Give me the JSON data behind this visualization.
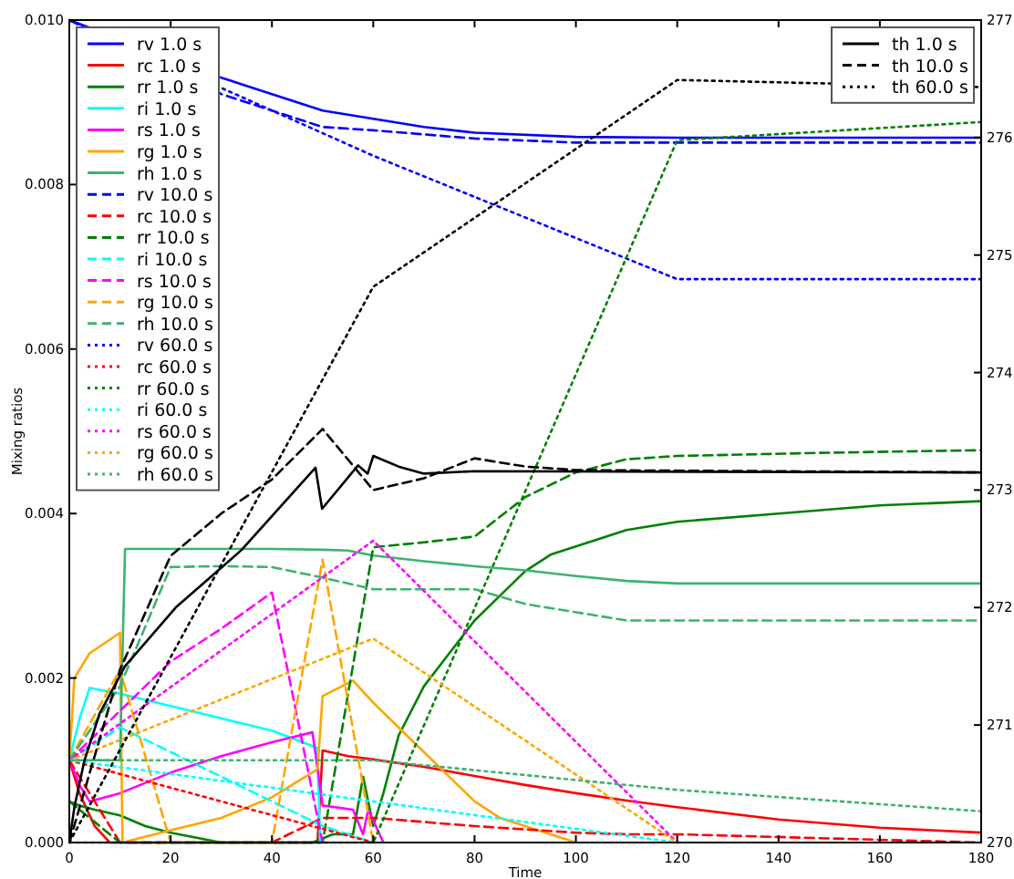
{
  "chart_data": {
    "type": "line",
    "xlabel": "Time",
    "ylabel": "Mixing ratios",
    "xlim": [
      0,
      180
    ],
    "xticks": [
      0,
      20,
      40,
      60,
      80,
      100,
      120,
      140,
      160,
      180
    ],
    "ylim": [
      0,
      0.01
    ],
    "yticks": [
      {
        "value": 0,
        "label": "0.000"
      },
      {
        "value": 0.002,
        "label": "0.002"
      },
      {
        "value": 0.004,
        "label": "0.004"
      },
      {
        "value": 0.006,
        "label": "0.006"
      },
      {
        "value": 0.008,
        "label": "0.008"
      },
      {
        "value": 0.01,
        "label": "0.010"
      }
    ],
    "y2lim": [
      270,
      277
    ],
    "y2ticks": [
      270,
      271,
      272,
      273,
      274,
      275,
      276,
      277
    ],
    "legend": "top left",
    "series": [
      {
        "name": "rv 1.0 s",
        "color": "#0000ff",
        "line_style": "solid",
        "x": [
          0,
          30,
          40,
          50,
          60,
          70,
          80,
          100,
          120,
          180
        ],
        "values": [
          0.01,
          0.0093,
          0.0091,
          0.0089,
          0.0088,
          0.0087,
          0.00863,
          0.00858,
          0.00857,
          0.00857
        ]
      },
      {
        "name": "rc 1.0 s",
        "color": "#ff0000",
        "line_style": "solid",
        "x": [
          0,
          2,
          5,
          8,
          10,
          49,
          50,
          55,
          60,
          70,
          80,
          90,
          100,
          110,
          120,
          140,
          160,
          180
        ],
        "values": [
          0.001,
          0.0006,
          0.0002,
          0,
          0,
          0,
          0.00112,
          0.00105,
          0.00101,
          0.00092,
          0.00081,
          0.0007,
          0.0006,
          0.00051,
          0.00043,
          0.00028,
          0.00018,
          0.00012
        ]
      },
      {
        "name": "rr 1.0 s",
        "color": "#008000",
        "line_style": "solid",
        "x": [
          0,
          2,
          5,
          10,
          15,
          20,
          30,
          40,
          48,
          52,
          56,
          58,
          60,
          62,
          65,
          70,
          75,
          80,
          85,
          90,
          95,
          100,
          110,
          120,
          140,
          160,
          180
        ],
        "values": [
          0.0005,
          0.00045,
          0.0004,
          0.00033,
          0.0002,
          0.00012,
          0,
          0,
          0,
          0.0001,
          0.0001,
          0.0008,
          0.0002,
          0.0006,
          0.0013,
          0.0019,
          0.0023,
          0.0027,
          0.003,
          0.0033,
          0.0035,
          0.0036,
          0.0038,
          0.0039,
          0.004,
          0.0041,
          0.00415
        ]
      },
      {
        "name": "ri 1.0 s",
        "color": "#00ffff",
        "line_style": "solid",
        "x": [
          0,
          2,
          4,
          10,
          20,
          30,
          40,
          49,
          49.5
        ],
        "values": [
          0.001,
          0.0015,
          0.00188,
          0.00181,
          0.00166,
          0.00151,
          0.00136,
          0.00115,
          0
        ]
      },
      {
        "name": "rs 1.0 s",
        "color": "#ff00ff",
        "line_style": "solid",
        "x": [
          0,
          2,
          4,
          10,
          20,
          30,
          40,
          48,
          50,
          56,
          58,
          59,
          62
        ],
        "values": [
          0.001,
          0.0007,
          0.0005,
          0.0006,
          0.00085,
          0.00105,
          0.00122,
          0.00134,
          0.00045,
          0.0004,
          0.0001,
          0.0004,
          0
        ]
      },
      {
        "name": "rg 1.0 s",
        "color": "#ffa500",
        "line_style": "solid",
        "x": [
          0,
          1,
          4,
          10,
          10.5,
          20,
          30,
          40,
          49,
          50,
          56,
          60,
          65,
          70,
          75,
          80,
          85,
          90,
          100
        ],
        "values": [
          0.001,
          0.002,
          0.0023,
          0.00255,
          0,
          0.00015,
          0.0003,
          0.00055,
          0.00089,
          0.00178,
          0.00197,
          0.0017,
          0.0014,
          0.0011,
          0.0008,
          0.0005,
          0.0003,
          0.0002,
          0
        ]
      },
      {
        "name": "rh 1.0 s",
        "color": "#3cb371",
        "line_style": "solid",
        "x": [
          0,
          10,
          11,
          20,
          30,
          40,
          50,
          55,
          60,
          70,
          80,
          90,
          100,
          110,
          120,
          150,
          180
        ],
        "values": [
          0.001,
          0.001,
          0.00357,
          0.00357,
          0.00357,
          0.00357,
          0.00356,
          0.00355,
          0.00349,
          0.00342,
          0.00336,
          0.00331,
          0.00324,
          0.00318,
          0.00315,
          0.00315,
          0.00315
        ]
      },
      {
        "name": "rv 10.0 s",
        "color": "#0000ff",
        "line_style": "dashed",
        "x": [
          0,
          30,
          40,
          50,
          60,
          80,
          100,
          180
        ],
        "values": [
          0.01,
          0.0091,
          0.0089,
          0.0087,
          0.00866,
          0.00856,
          0.00851,
          0.00851
        ]
      },
      {
        "name": "rc 10.0 s",
        "color": "#ff0000",
        "line_style": "dashed",
        "x": [
          0,
          10,
          20,
          30,
          40,
          50,
          60,
          70,
          80,
          90,
          100,
          110,
          120,
          180
        ],
        "values": [
          0.001,
          0,
          0,
          0,
          0,
          0.0003,
          0.0003,
          0.00025,
          0.0002,
          0.00016,
          0.00012,
          0.0001,
          0.0001,
          0
        ]
      },
      {
        "name": "rr 10.0 s",
        "color": "#008000",
        "line_style": "dashed",
        "x": [
          0,
          10,
          20,
          40,
          50,
          60,
          70,
          80,
          90,
          100,
          110,
          120,
          150,
          180
        ],
        "values": [
          0.0005,
          0,
          0,
          0,
          0,
          0.00359,
          0.00365,
          0.00372,
          0.0042,
          0.0045,
          0.00466,
          0.0047,
          0.00474,
          0.00477
        ]
      },
      {
        "name": "ri 10.0 s",
        "color": "#00ffff",
        "line_style": "dashed",
        "x": [
          0,
          10,
          20,
          30,
          40,
          50,
          60
        ],
        "values": [
          0.001,
          0.0014,
          0.0011,
          0.0008,
          0.0005,
          0.0002,
          0
        ]
      },
      {
        "name": "rs 10.0 s",
        "color": "#ff00ff",
        "line_style": "dashed",
        "x": [
          0,
          10,
          20,
          30,
          40,
          50
        ],
        "values": [
          0.001,
          0.0016,
          0.0022,
          0.0026,
          0.00304,
          0
        ]
      },
      {
        "name": "rg 10.0 s",
        "color": "#ffa500",
        "line_style": "dashed",
        "x": [
          0,
          10,
          20,
          30,
          40,
          50,
          60
        ],
        "values": [
          0.001,
          0.0021,
          0,
          0,
          0,
          0.00344,
          0
        ]
      },
      {
        "name": "rh 10.0 s",
        "color": "#3cb371",
        "line_style": "dashed",
        "x": [
          0,
          10,
          20,
          30,
          40,
          50,
          60,
          70,
          80,
          90,
          100,
          110,
          180
        ],
        "values": [
          0.001,
          0.0019,
          0.00335,
          0.00336,
          0.00335,
          0.00322,
          0.00308,
          0.00308,
          0.00308,
          0.0029,
          0.0028,
          0.0027,
          0.0027
        ]
      },
      {
        "name": "rv 60.0 s",
        "color": "#0000ff",
        "line_style": "dotted",
        "x": [
          0,
          60,
          120,
          180
        ],
        "values": [
          0.01,
          0.00835,
          0.00685,
          0.00685
        ]
      },
      {
        "name": "rc 60.0 s",
        "color": "#ff0000",
        "line_style": "dotted",
        "x": [
          0,
          60
        ],
        "values": [
          0.001,
          0
        ]
      },
      {
        "name": "rr 60.0 s",
        "color": "#008000",
        "line_style": "dotted",
        "x": [
          0,
          60,
          120,
          180
        ],
        "values": [
          0,
          0,
          0.00854,
          0.00876
        ]
      },
      {
        "name": "ri 60.0 s",
        "color": "#00ffff",
        "line_style": "dotted",
        "x": [
          0,
          60,
          120
        ],
        "values": [
          0.001,
          0.0005,
          0
        ]
      },
      {
        "name": "rs 60.0 s",
        "color": "#ff00ff",
        "line_style": "dotted",
        "x": [
          0,
          60,
          120
        ],
        "values": [
          0.001,
          0.00367,
          0
        ]
      },
      {
        "name": "rg 60.0 s",
        "color": "#ffa500",
        "line_style": "dotted",
        "x": [
          0,
          60,
          120
        ],
        "values": [
          0.001,
          0.00248,
          0
        ]
      },
      {
        "name": "rh 60.0 s",
        "color": "#3cb371",
        "line_style": "dotted",
        "x": [
          0,
          60,
          120,
          180
        ],
        "values": [
          0.001,
          0.001,
          0.00064,
          0.00038
        ]
      },
      {
        "name": "th 1.0 s",
        "color": "#000000",
        "line_style": "solid",
        "axis": "y2",
        "x": [
          0,
          1,
          3,
          6,
          11,
          21,
          34,
          48.6,
          49.9,
          57,
          58.9,
          60,
          65,
          70,
          80,
          180
        ],
        "values": [
          270,
          270.3,
          270.7,
          271.1,
          271.5,
          272,
          272.49,
          273.19,
          272.84,
          273.21,
          273.14,
          273.29,
          273.2,
          273.14,
          273.16,
          273.15
        ]
      },
      {
        "name": "th 10.0 s",
        "color": "#000000",
        "line_style": "dashed",
        "axis": "y2",
        "x": [
          0,
          10,
          20,
          30,
          40,
          50,
          60,
          70,
          80,
          90,
          100,
          180
        ],
        "values": [
          270,
          271.47,
          272.44,
          272.8,
          273.09,
          273.52,
          273,
          273.1,
          273.27,
          273.2,
          273.17,
          273.15
        ]
      },
      {
        "name": "th 60.0 s",
        "color": "#000000",
        "line_style": "dotted",
        "axis": "y2",
        "x": [
          0,
          60,
          120,
          180
        ],
        "values": [
          270,
          274.73,
          276.49,
          276.43
        ]
      }
    ]
  }
}
